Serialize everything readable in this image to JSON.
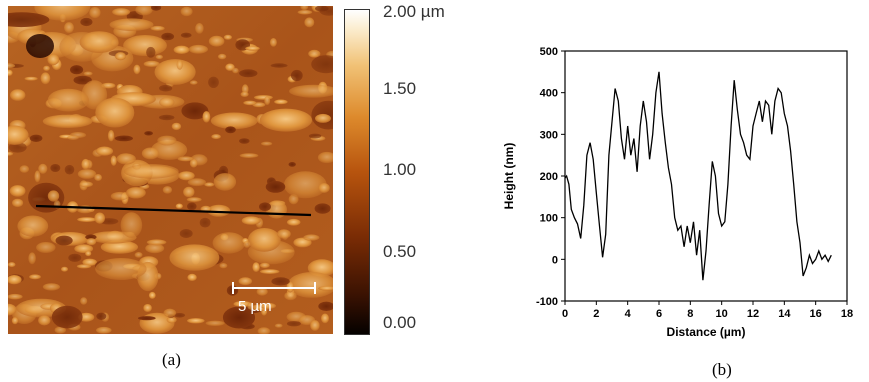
{
  "afm_image": {
    "scalebar_label": "5 µm",
    "colorbar_ticks": [
      "2.00 µm",
      "1.50",
      "1.00",
      "0.50",
      "0.00"
    ],
    "colorbar_tick_values": [
      2.0,
      1.5,
      1.0,
      0.5,
      0.0
    ],
    "panel_label": "(a)"
  },
  "panel_b_label": "(b)",
  "chart_data": {
    "type": "line",
    "xlabel": "Distance (µm)",
    "ylabel": "Height (nm)",
    "xlim": [
      0,
      18
    ],
    "ylim": [
      -100,
      500
    ],
    "xticks": [
      "0",
      "2",
      "4",
      "6",
      "8",
      "10",
      "12",
      "14",
      "16",
      "18"
    ],
    "yticks": [
      "-100",
      "0",
      "100",
      "200",
      "300",
      "400",
      "500"
    ],
    "grid": false,
    "series": [
      {
        "x": [
          0,
          0.1,
          0.25,
          0.4,
          0.6,
          0.8,
          1.0,
          1.2,
          1.4,
          1.6,
          1.8,
          2.0,
          2.2,
          2.4,
          2.6,
          2.8,
          3.0,
          3.2,
          3.4,
          3.6,
          3.8,
          3.9,
          4.0,
          4.2,
          4.4,
          4.6,
          4.8,
          5.0,
          5.2,
          5.4,
          5.6,
          5.8,
          6.0,
          6.2,
          6.4,
          6.6,
          6.8,
          7.0,
          7.2,
          7.4,
          7.6,
          7.8,
          8.0,
          8.2,
          8.4,
          8.6,
          8.8,
          9.0,
          9.2,
          9.4,
          9.6,
          9.8,
          10.0,
          10.2,
          10.4,
          10.6,
          10.8,
          11.0,
          11.2,
          11.4,
          11.6,
          11.8,
          12.0,
          12.2,
          12.4,
          12.6,
          12.8,
          13.0,
          13.2,
          13.4,
          13.6,
          13.8,
          14.0,
          14.2,
          14.4,
          14.6,
          14.8,
          15.0,
          15.2,
          15.4,
          15.6,
          15.8,
          16.0,
          16.2,
          16.4,
          16.6,
          16.8,
          17.0
        ],
        "y": [
          195,
          200,
          180,
          120,
          100,
          85,
          50,
          130,
          250,
          280,
          240,
          160,
          80,
          5,
          60,
          250,
          330,
          410,
          380,
          290,
          240,
          280,
          320,
          250,
          290,
          210,
          320,
          380,
          330,
          240,
          300,
          400,
          450,
          350,
          280,
          220,
          180,
          100,
          70,
          80,
          30,
          80,
          40,
          90,
          10,
          70,
          -50,
          20,
          130,
          235,
          200,
          110,
          80,
          90,
          180,
          320,
          430,
          360,
          300,
          280,
          250,
          240,
          320,
          350,
          380,
          330,
          380,
          370,
          300,
          380,
          410,
          400,
          350,
          320,
          260,
          180,
          90,
          40,
          -40,
          -20,
          10,
          -10,
          0,
          20,
          0,
          10,
          -5,
          10
        ]
      }
    ]
  }
}
